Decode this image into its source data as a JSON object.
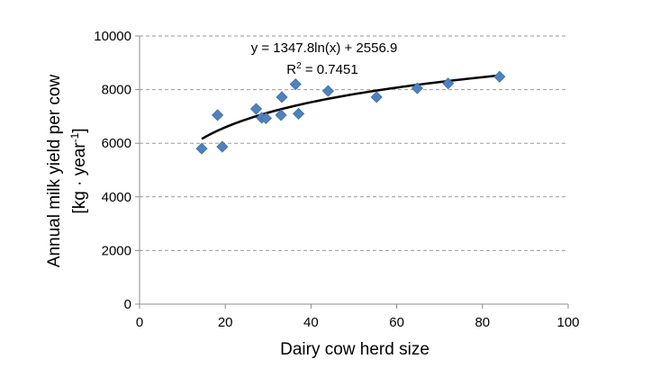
{
  "chart_data": {
    "type": "scatter",
    "xlabel": "Dairy cow herd size",
    "ylabel_line1": "Annual milk yield per cow",
    "ylabel_line2_prefix": "[kg · year",
    "ylabel_line2_sup": "-1",
    "ylabel_line2_suffix": "]",
    "xlim": [
      0,
      100
    ],
    "ylim": [
      0,
      10000
    ],
    "x_ticks": [
      0,
      20,
      40,
      60,
      80,
      100
    ],
    "y_ticks": [
      0,
      2000,
      4000,
      6000,
      8000,
      10000
    ],
    "grid": "horizontal dashed",
    "marker_color": "#4f81bd",
    "trendline_color": "#000000",
    "points": [
      {
        "x": 14.5,
        "y": 5800
      },
      {
        "x": 18.2,
        "y": 7050
      },
      {
        "x": 19.3,
        "y": 5870
      },
      {
        "x": 27.2,
        "y": 7280
      },
      {
        "x": 28.5,
        "y": 6950
      },
      {
        "x": 29.5,
        "y": 6930
      },
      {
        "x": 33.0,
        "y": 7050
      },
      {
        "x": 33.2,
        "y": 7720
      },
      {
        "x": 36.4,
        "y": 8200
      },
      {
        "x": 37.1,
        "y": 7100
      },
      {
        "x": 44.0,
        "y": 7950
      },
      {
        "x": 55.3,
        "y": 7720
      },
      {
        "x": 64.8,
        "y": 8050
      },
      {
        "x": 72.0,
        "y": 8230
      },
      {
        "x": 84.0,
        "y": 8480
      }
    ],
    "trendline": {
      "type": "logarithmic",
      "a": 1347.8,
      "b": 2556.9,
      "x_start": 14.5,
      "x_end": 84.0,
      "equation": "y = 1347.8ln(x) + 2556.9",
      "r2_prefix": "R",
      "r2_sup": "2",
      "r2_suffix": " = 0.7451"
    }
  }
}
